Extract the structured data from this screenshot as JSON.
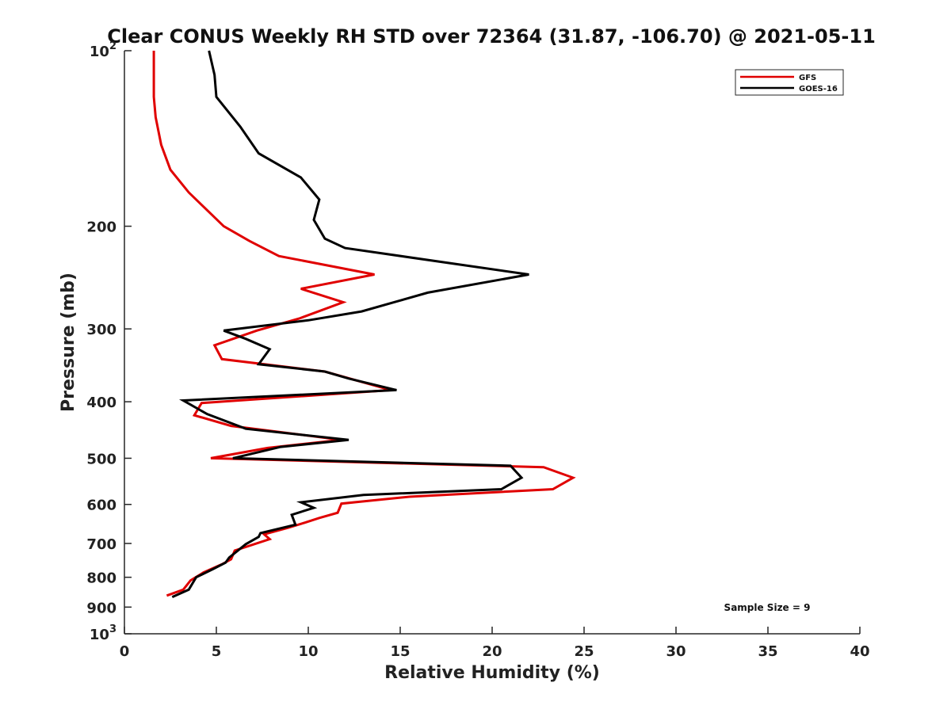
{
  "chart_data": {
    "type": "line",
    "title": "Clear CONUS Weekly RH STD over 72364 (31.87, -106.70) @ 2021-05-11",
    "xlabel": "Relative Humidity (%)",
    "ylabel": "Pressure (mb)",
    "xlim": [
      0,
      40
    ],
    "ylim": [
      100,
      1000
    ],
    "y_scale": "log",
    "y_reversed": true,
    "x_ticks": [
      0,
      5,
      10,
      15,
      20,
      25,
      30,
      35,
      40
    ],
    "y_ticks": [
      {
        "value": 100,
        "label": "10",
        "exp": "2"
      },
      {
        "value": 200,
        "label": "200"
      },
      {
        "value": 300,
        "label": "300"
      },
      {
        "value": 400,
        "label": "400"
      },
      {
        "value": 500,
        "label": "500"
      },
      {
        "value": 600,
        "label": "600"
      },
      {
        "value": 700,
        "label": "700"
      },
      {
        "value": 800,
        "label": "800"
      },
      {
        "value": 900,
        "label": "900"
      },
      {
        "value": 1000,
        "label": "10",
        "exp": "3"
      }
    ],
    "grid": false,
    "legend_position": "top-right",
    "annotation": "Sample Size = 9",
    "series": [
      {
        "name": "GFS",
        "color": "#e00000",
        "points": [
          [
            1.6,
            100
          ],
          [
            1.6,
            110
          ],
          [
            1.6,
            120
          ],
          [
            1.7,
            130
          ],
          [
            2.0,
            145
          ],
          [
            2.5,
            160
          ],
          [
            3.5,
            175
          ],
          [
            5.4,
            200
          ],
          [
            6.8,
            212
          ],
          [
            8.4,
            225
          ],
          [
            13.6,
            242
          ],
          [
            9.6,
            256
          ],
          [
            11.9,
            270
          ],
          [
            9.5,
            288
          ],
          [
            7.2,
            302
          ],
          [
            4.9,
            320
          ],
          [
            5.3,
            338
          ],
          [
            10.9,
            355
          ],
          [
            14.5,
            382
          ],
          [
            4.2,
            402
          ],
          [
            3.8,
            422
          ],
          [
            5.8,
            440
          ],
          [
            11.8,
            465
          ],
          [
            7.8,
            480
          ],
          [
            4.7,
            500
          ],
          [
            22.8,
            518
          ],
          [
            24.4,
            540
          ],
          [
            23.3,
            565
          ],
          [
            15.5,
            582
          ],
          [
            11.8,
            598
          ],
          [
            11.6,
            620
          ],
          [
            10.6,
            633
          ],
          [
            9.8,
            645
          ],
          [
            8.9,
            658
          ],
          [
            7.6,
            675
          ],
          [
            7.9,
            688
          ],
          [
            6.0,
            720
          ],
          [
            5.8,
            745
          ],
          [
            5.3,
            760
          ],
          [
            4.3,
            785
          ],
          [
            3.6,
            810
          ],
          [
            3.2,
            840
          ],
          [
            2.3,
            860
          ]
        ]
      },
      {
        "name": "GOES-16",
        "color": "#000000",
        "points": [
          [
            4.6,
            100
          ],
          [
            4.9,
            110
          ],
          [
            5.0,
            120
          ],
          [
            6.3,
            135
          ],
          [
            7.3,
            150
          ],
          [
            9.6,
            165
          ],
          [
            10.6,
            180
          ],
          [
            10.3,
            195
          ],
          [
            10.9,
            210
          ],
          [
            12.0,
            218
          ],
          [
            22.0,
            242
          ],
          [
            16.5,
            260
          ],
          [
            12.9,
            280
          ],
          [
            10.0,
            290
          ],
          [
            5.4,
            302
          ],
          [
            6.6,
            312
          ],
          [
            7.9,
            325
          ],
          [
            7.3,
            345
          ],
          [
            10.9,
            355
          ],
          [
            12.2,
            365
          ],
          [
            14.8,
            382
          ],
          [
            3.2,
            398
          ],
          [
            4.5,
            420
          ],
          [
            6.6,
            445
          ],
          [
            12.2,
            465
          ],
          [
            8.5,
            478
          ],
          [
            5.9,
            500
          ],
          [
            21.0,
            515
          ],
          [
            21.6,
            540
          ],
          [
            20.5,
            565
          ],
          [
            13.0,
            578
          ],
          [
            9.6,
            595
          ],
          [
            10.3,
            608
          ],
          [
            9.1,
            625
          ],
          [
            9.3,
            650
          ],
          [
            7.4,
            672
          ],
          [
            7.3,
            682
          ],
          [
            6.6,
            702
          ],
          [
            5.7,
            740
          ],
          [
            5.5,
            755
          ],
          [
            4.8,
            775
          ],
          [
            3.9,
            800
          ],
          [
            3.5,
            840
          ],
          [
            2.6,
            865
          ]
        ]
      }
    ]
  }
}
